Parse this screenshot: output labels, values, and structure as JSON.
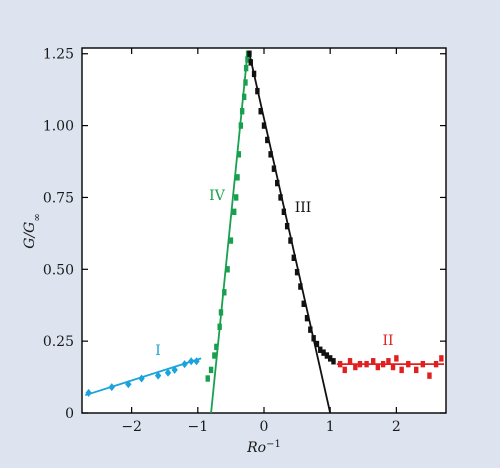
{
  "chart_data": {
    "type": "scatter",
    "title": "",
    "xlabel": "Ro",
    "xlabel_superscript": "−1",
    "ylabel": "G/G",
    "ylabel_subscript": "∞",
    "xlim": [
      -2.75,
      2.75
    ],
    "ylim": [
      0,
      1.27
    ],
    "x_ticks": [
      -2,
      -1,
      0,
      1,
      2
    ],
    "x_tick_labels": [
      "−2",
      "−1",
      "0",
      "1",
      "2"
    ],
    "y_ticks": [
      0,
      0.25,
      0.5,
      0.75,
      1.0,
      1.25
    ],
    "y_tick_labels": [
      "0",
      "0.25",
      "0.50",
      "0.75",
      "1.00",
      "1.25"
    ],
    "grid": false,
    "background_color": "#dde3ef",
    "plot_background_color": "#ffffff",
    "series": [
      {
        "name": "I",
        "color": "#1aa3dc",
        "marker": "diamond",
        "points": [
          [
            -2.65,
            0.07
          ],
          [
            -2.3,
            0.09
          ],
          [
            -2.05,
            0.1
          ],
          [
            -1.85,
            0.12
          ],
          [
            -1.6,
            0.13
          ],
          [
            -1.45,
            0.14
          ],
          [
            -1.35,
            0.15
          ],
          [
            -1.2,
            0.17
          ],
          [
            -1.1,
            0.18
          ],
          [
            -1.02,
            0.18
          ]
        ],
        "fit_line": [
          [
            -2.7,
            0.062
          ],
          [
            -0.95,
            0.19
          ]
        ]
      },
      {
        "name": "IV",
        "color": "#18a04f",
        "marker": "square",
        "points": [
          [
            -0.85,
            0.12
          ],
          [
            -0.8,
            0.15
          ],
          [
            -0.75,
            0.2
          ],
          [
            -0.72,
            0.23
          ],
          [
            -0.67,
            0.3
          ],
          [
            -0.65,
            0.35
          ],
          [
            -0.6,
            0.42
          ],
          [
            -0.55,
            0.5
          ],
          [
            -0.5,
            0.6
          ],
          [
            -0.45,
            0.7
          ],
          [
            -0.42,
            0.75
          ],
          [
            -0.4,
            0.82
          ],
          [
            -0.38,
            0.9
          ],
          [
            -0.35,
            1.0
          ],
          [
            -0.33,
            1.05
          ],
          [
            -0.3,
            1.1
          ],
          [
            -0.28,
            1.15
          ],
          [
            -0.27,
            1.2
          ],
          [
            -0.25,
            1.23
          ],
          [
            -0.24,
            1.25
          ]
        ],
        "fit_line": [
          [
            -0.8,
            0.0
          ],
          [
            -0.25,
            1.25
          ]
        ]
      },
      {
        "name": "III",
        "color": "#111111",
        "marker": "square",
        "points": [
          [
            -0.22,
            1.25
          ],
          [
            -0.2,
            1.22
          ],
          [
            -0.15,
            1.18
          ],
          [
            -0.1,
            1.12
          ],
          [
            -0.05,
            1.05
          ],
          [
            0.0,
            1.0
          ],
          [
            0.05,
            0.95
          ],
          [
            0.1,
            0.9
          ],
          [
            0.15,
            0.85
          ],
          [
            0.2,
            0.8
          ],
          [
            0.25,
            0.75
          ],
          [
            0.3,
            0.7
          ],
          [
            0.35,
            0.65
          ],
          [
            0.4,
            0.6
          ],
          [
            0.45,
            0.54
          ],
          [
            0.5,
            0.49
          ],
          [
            0.55,
            0.44
          ],
          [
            0.6,
            0.38
          ],
          [
            0.65,
            0.33
          ],
          [
            0.7,
            0.29
          ],
          [
            0.75,
            0.26
          ],
          [
            0.8,
            0.24
          ],
          [
            0.85,
            0.22
          ],
          [
            0.9,
            0.21
          ],
          [
            0.95,
            0.2
          ],
          [
            1.0,
            0.19
          ],
          [
            1.05,
            0.18
          ]
        ],
        "fit_line": [
          [
            -0.22,
            1.25
          ],
          [
            1.0,
            0.0
          ]
        ]
      },
      {
        "name": "II",
        "color": "#e02020",
        "marker": "square",
        "points": [
          [
            1.15,
            0.17
          ],
          [
            1.22,
            0.15
          ],
          [
            1.3,
            0.18
          ],
          [
            1.38,
            0.16
          ],
          [
            1.45,
            0.17
          ],
          [
            1.55,
            0.17
          ],
          [
            1.65,
            0.18
          ],
          [
            1.72,
            0.16
          ],
          [
            1.8,
            0.17
          ],
          [
            1.88,
            0.18
          ],
          [
            1.95,
            0.16
          ],
          [
            2.0,
            0.19
          ],
          [
            2.08,
            0.15
          ],
          [
            2.18,
            0.17
          ],
          [
            2.3,
            0.15
          ],
          [
            2.4,
            0.17
          ],
          [
            2.5,
            0.13
          ],
          [
            2.6,
            0.17
          ],
          [
            2.68,
            0.19
          ]
        ],
        "fit_line": [
          [
            1.1,
            0.17
          ],
          [
            2.72,
            0.17
          ]
        ]
      }
    ]
  }
}
